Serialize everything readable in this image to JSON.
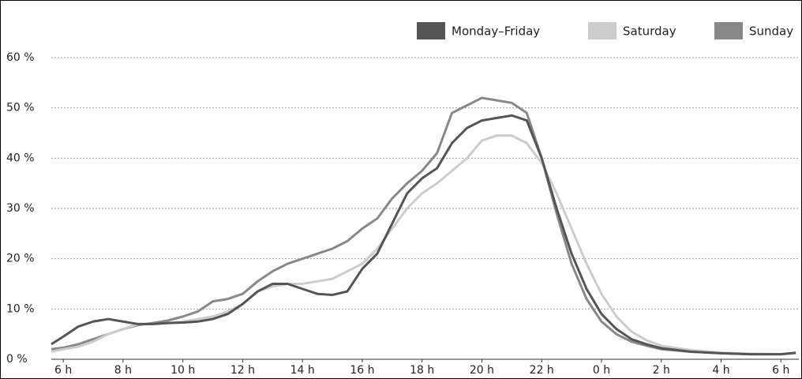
{
  "chart_data": {
    "type": "line",
    "x": [
      5.6,
      6,
      6.5,
      7,
      7.5,
      8,
      8.5,
      9,
      9.5,
      10,
      10.5,
      11,
      11.5,
      12,
      12.5,
      13,
      13.5,
      14,
      14.5,
      15,
      15.5,
      16,
      16.5,
      17,
      17.5,
      18,
      18.5,
      19,
      19.5,
      20,
      20.5,
      21,
      21.5,
      22,
      22.5,
      23,
      23.5,
      24,
      24.5,
      25,
      25.5,
      26,
      27,
      28,
      29,
      30,
      30.5
    ],
    "series": [
      {
        "name": "Monday–Friday",
        "color": "#555555",
        "values": [
          3,
          4.5,
          6.5,
          7.5,
          8,
          7.5,
          7,
          7,
          7.2,
          7.3,
          7.5,
          8,
          9,
          11,
          13.5,
          15,
          15,
          14,
          13,
          12.8,
          13.5,
          18,
          21,
          27,
          33,
          36,
          38,
          43,
          46,
          47.5,
          48,
          48.5,
          47.5,
          40,
          30,
          21,
          14,
          9,
          6,
          4,
          3,
          2.2,
          1.5,
          1.2,
          1,
          1,
          1.3
        ]
      },
      {
        "name": "Saturday",
        "color": "#cccccc",
        "values": [
          1.5,
          2,
          2.5,
          3.5,
          5,
          6,
          7,
          7,
          7.2,
          7.5,
          8,
          8.5,
          9.5,
          11,
          13.5,
          14.5,
          15,
          15,
          15.5,
          16,
          17.5,
          19,
          22,
          26,
          30,
          33,
          35,
          37.5,
          40,
          43.5,
          44.5,
          44.5,
          43,
          39,
          33,
          26,
          19,
          13,
          8.5,
          5.5,
          3.8,
          2.7,
          1.8,
          1.3,
          1.1,
          1,
          1.2
        ]
      },
      {
        "name": "Sunday",
        "color": "#888888",
        "values": [
          2,
          2.3,
          3,
          4,
          5,
          6,
          6.8,
          7.2,
          7.7,
          8.5,
          9.5,
          11.5,
          12,
          13,
          15.5,
          17.5,
          19,
          20,
          21,
          22,
          23.5,
          26,
          28,
          32,
          35,
          37.5,
          41,
          49,
          50.5,
          52,
          51.5,
          51,
          49,
          40,
          29,
          19,
          12,
          7.5,
          5,
          3.5,
          2.7,
          2,
          1.5,
          1.2,
          1,
          1,
          1.2
        ]
      }
    ],
    "xlim": [
      5.6,
      30.6
    ],
    "xticks": [
      {
        "value": 6,
        "label": "6 h"
      },
      {
        "value": 8,
        "label": "8 h"
      },
      {
        "value": 10,
        "label": "10 h"
      },
      {
        "value": 12,
        "label": "12 h"
      },
      {
        "value": 14,
        "label": "14 h"
      },
      {
        "value": 16,
        "label": "16 h"
      },
      {
        "value": 18,
        "label": "18 h"
      },
      {
        "value": 20,
        "label": "20 h"
      },
      {
        "value": 22,
        "label": "22 h"
      },
      {
        "value": 24,
        "label": "0 h"
      },
      {
        "value": 26,
        "label": "2 h"
      },
      {
        "value": 28,
        "label": "4 h"
      },
      {
        "value": 30,
        "label": "6 h"
      }
    ],
    "ylim": [
      0,
      60
    ],
    "yticks": [
      {
        "value": 0,
        "label": "0 %"
      },
      {
        "value": 10,
        "label": "10 %"
      },
      {
        "value": 20,
        "label": "20 %"
      },
      {
        "value": 30,
        "label": "30 %"
      },
      {
        "value": 40,
        "label": "40 %"
      },
      {
        "value": 50,
        "label": "50 %"
      },
      {
        "value": 60,
        "label": "60 %"
      }
    ],
    "grid": true,
    "legend": "top-right"
  }
}
